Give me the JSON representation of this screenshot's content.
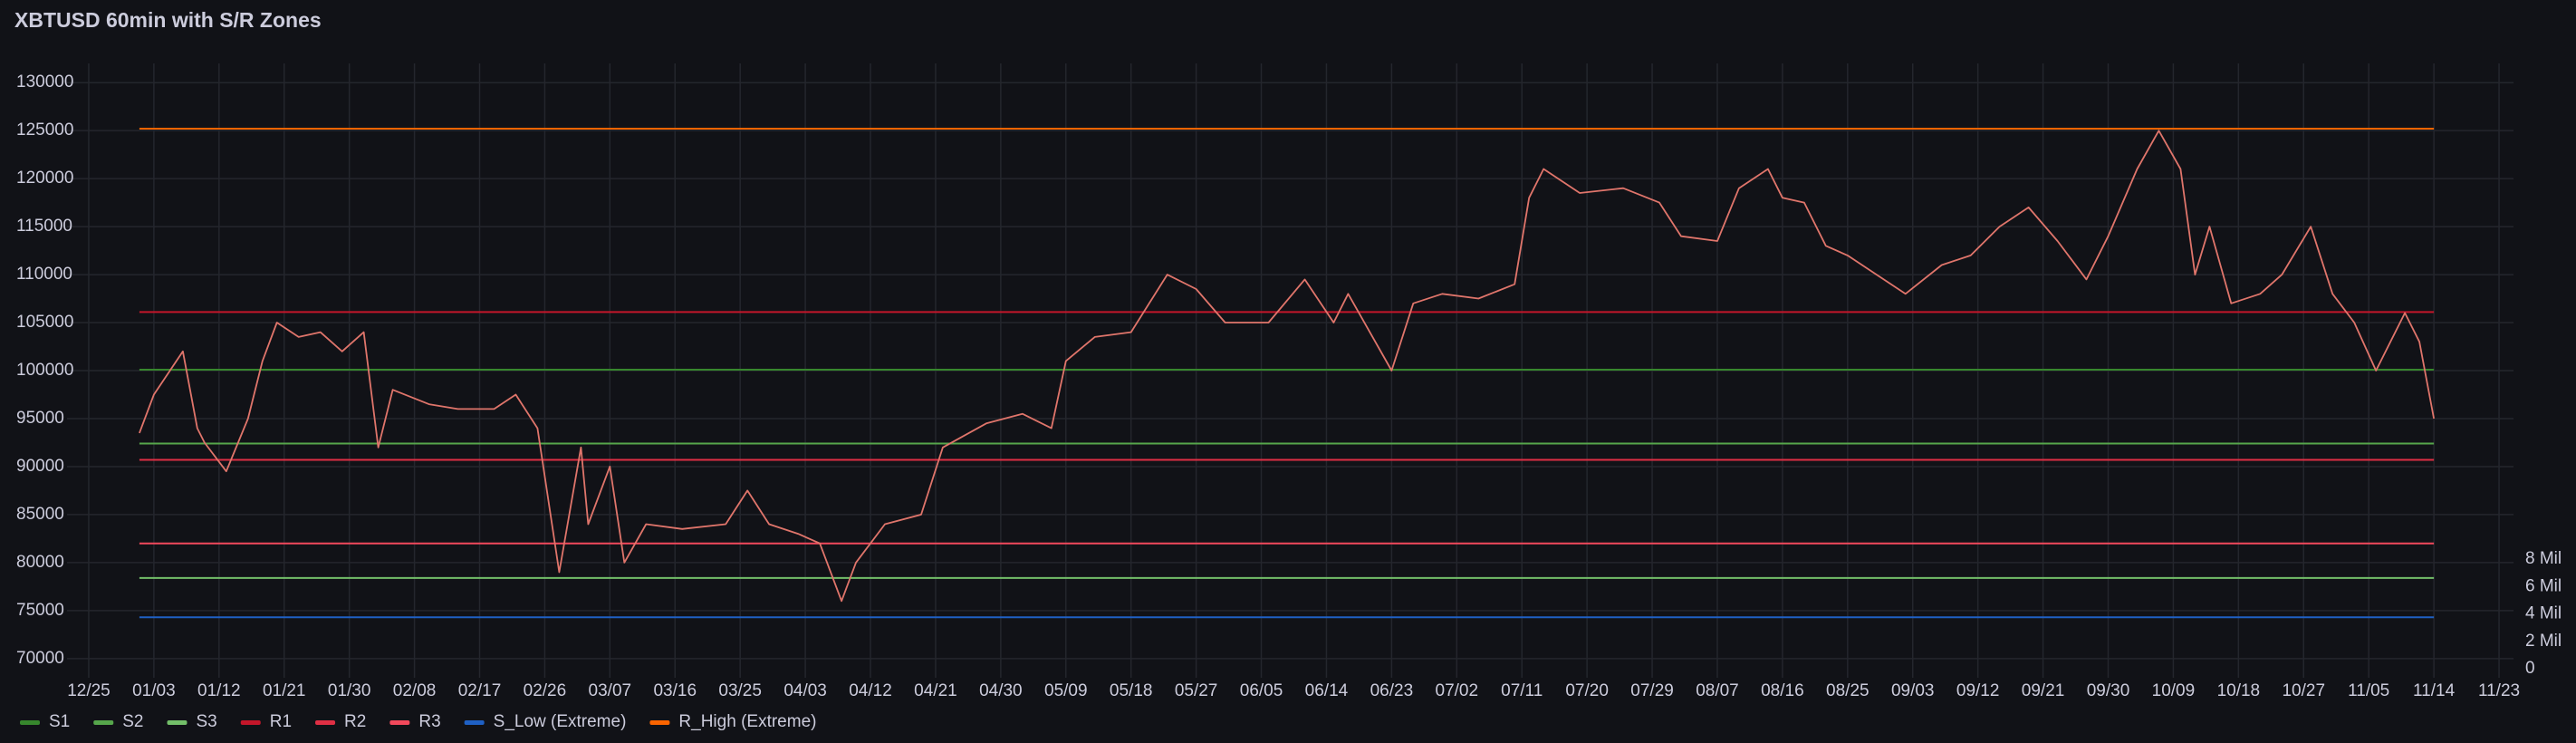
{
  "chart_data": {
    "type": "line",
    "title": "XBTUSD 60min with S/R Zones",
    "x": [
      7,
      9,
      13,
      15,
      16,
      19,
      22,
      24,
      26,
      29,
      32,
      35,
      38,
      40,
      42,
      47,
      51,
      56,
      59,
      62,
      64,
      65,
      68,
      69,
      72,
      74,
      77,
      82,
      88,
      91,
      94,
      98,
      101,
      104,
      106,
      110,
      115,
      118,
      124,
      129,
      133,
      135,
      139,
      144,
      149,
      153,
      157,
      163,
      168,
      172,
      174,
      180,
      183,
      187,
      192,
      197,
      199,
      201,
      206,
      212,
      217,
      220,
      225,
      228,
      232,
      234,
      237,
      240,
      243,
      247,
      251,
      256,
      260,
      264,
      268,
      272,
      276,
      279,
      283,
      286,
      289,
      291,
      293,
      296,
      300,
      303,
      307,
      310,
      313,
      316,
      320,
      322,
      324
    ],
    "series": [
      {
        "color": "#e0756b",
        "values": [
          93500,
          97500,
          102000,
          94000,
          92500,
          89500,
          95000,
          101000,
          105000,
          103500,
          104000,
          102000,
          104000,
          92000,
          98000,
          96500,
          96000,
          96000,
          97500,
          94000,
          84000,
          79000,
          92000,
          84000,
          90000,
          80000,
          84000,
          83500,
          84000,
          87500,
          84000,
          83000,
          82000,
          76000,
          80000,
          84000,
          85000,
          92000,
          94500,
          95500,
          94000,
          101000,
          103500,
          104000,
          110000,
          108500,
          105000,
          105000,
          109500,
          105000,
          108000,
          100000,
          107000,
          108000,
          107500,
          109000,
          118000,
          121000,
          118500,
          119000,
          117500,
          114000,
          113500,
          119000,
          121000,
          118000,
          117500,
          113000,
          112000,
          110000,
          108000,
          111000,
          112000,
          115000,
          117000,
          113500,
          109500,
          114000,
          121000,
          125000,
          121000,
          110000,
          115000,
          107000,
          108000,
          110000,
          115000,
          108000,
          105000,
          100000,
          106000,
          103000,
          95000
        ]
      }
    ],
    "levels": [
      {
        "name": "S1",
        "value": 100100,
        "color": "#37872d"
      },
      {
        "name": "S2",
        "value": 92400,
        "color": "#56a64b"
      },
      {
        "name": "S3",
        "value": 78400,
        "color": "#73bf69"
      },
      {
        "name": "R1",
        "value": 106100,
        "color": "#c4162a"
      },
      {
        "name": "R2",
        "value": 90700,
        "color": "#e02f44"
      },
      {
        "name": "R3",
        "value": 82000,
        "color": "#f2495c"
      },
      {
        "name": "S_Low (Extreme)",
        "value": 74300,
        "color": "#1f60c4"
      },
      {
        "name": "R_High (Extreme)",
        "value": 125200,
        "color": "#fa6400"
      }
    ],
    "xlim": [
      -3,
      335
    ],
    "xticks": [
      {
        "value": 0,
        "label": "12/25"
      },
      {
        "value": 9,
        "label": "01/03"
      },
      {
        "value": 18,
        "label": "01/12"
      },
      {
        "value": 27,
        "label": "01/21"
      },
      {
        "value": 36,
        "label": "01/30"
      },
      {
        "value": 45,
        "label": "02/08"
      },
      {
        "value": 54,
        "label": "02/17"
      },
      {
        "value": 63,
        "label": "02/26"
      },
      {
        "value": 72,
        "label": "03/07"
      },
      {
        "value": 81,
        "label": "03/16"
      },
      {
        "value": 90,
        "label": "03/25"
      },
      {
        "value": 99,
        "label": "04/03"
      },
      {
        "value": 108,
        "label": "04/12"
      },
      {
        "value": 117,
        "label": "04/21"
      },
      {
        "value": 126,
        "label": "04/30"
      },
      {
        "value": 135,
        "label": "05/09"
      },
      {
        "value": 144,
        "label": "05/18"
      },
      {
        "value": 153,
        "label": "05/27"
      },
      {
        "value": 162,
        "label": "06/05"
      },
      {
        "value": 171,
        "label": "06/14"
      },
      {
        "value": 180,
        "label": "06/23"
      },
      {
        "value": 189,
        "label": "07/02"
      },
      {
        "value": 198,
        "label": "07/11"
      },
      {
        "value": 207,
        "label": "07/20"
      },
      {
        "value": 216,
        "label": "07/29"
      },
      {
        "value": 225,
        "label": "08/07"
      },
      {
        "value": 234,
        "label": "08/16"
      },
      {
        "value": 243,
        "label": "08/25"
      },
      {
        "value": 252,
        "label": "09/03"
      },
      {
        "value": 261,
        "label": "09/12"
      },
      {
        "value": 270,
        "label": "09/21"
      },
      {
        "value": 279,
        "label": "09/30"
      },
      {
        "value": 288,
        "label": "10/09"
      },
      {
        "value": 297,
        "label": "10/18"
      },
      {
        "value": 306,
        "label": "10/27"
      },
      {
        "value": 315,
        "label": "11/05"
      },
      {
        "value": 324,
        "label": "11/14"
      },
      {
        "value": 333,
        "label": "11/23"
      }
    ],
    "ylim": [
      68000,
      132000
    ],
    "yticks": [
      70000,
      75000,
      80000,
      85000,
      90000,
      95000,
      100000,
      105000,
      110000,
      115000,
      120000,
      125000,
      130000
    ],
    "y2lim": [
      0,
      8000000
    ],
    "y2ticks": [
      0,
      {
        "value": 2000000,
        "label": "2 Mil"
      },
      {
        "value": 4000000,
        "label": "4 Mil"
      },
      {
        "value": 6000000,
        "label": "6 Mil"
      },
      {
        "value": 8000000,
        "label": "8 Mil"
      }
    ],
    "grid": true
  }
}
